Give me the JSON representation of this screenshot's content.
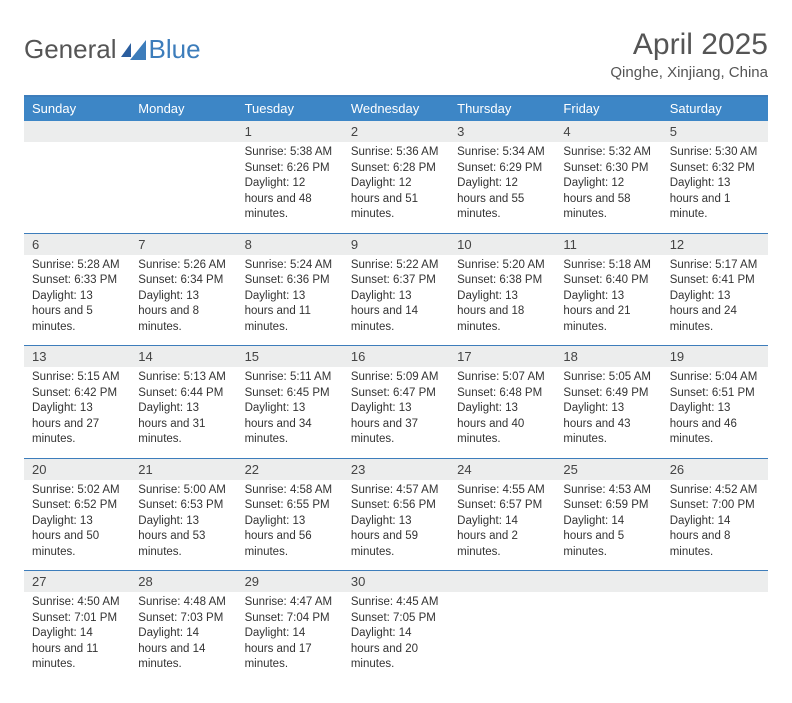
{
  "logo": {
    "text1": "General",
    "text2": "Blue"
  },
  "title": "April 2025",
  "location": "Qinghe, Xinjiang, China",
  "colors": {
    "header_bg": "#3d86c6",
    "header_text": "#ffffff",
    "daynum_bg": "#eceded",
    "rule": "#3d7dbb",
    "body_text": "#333333",
    "title_text": "#555555"
  },
  "weekdays": [
    "Sunday",
    "Monday",
    "Tuesday",
    "Wednesday",
    "Thursday",
    "Friday",
    "Saturday"
  ],
  "weeks": [
    [
      null,
      null,
      {
        "n": "1",
        "sr": "5:38 AM",
        "ss": "6:26 PM",
        "dl": "12 hours and 48 minutes."
      },
      {
        "n": "2",
        "sr": "5:36 AM",
        "ss": "6:28 PM",
        "dl": "12 hours and 51 minutes."
      },
      {
        "n": "3",
        "sr": "5:34 AM",
        "ss": "6:29 PM",
        "dl": "12 hours and 55 minutes."
      },
      {
        "n": "4",
        "sr": "5:32 AM",
        "ss": "6:30 PM",
        "dl": "12 hours and 58 minutes."
      },
      {
        "n": "5",
        "sr": "5:30 AM",
        "ss": "6:32 PM",
        "dl": "13 hours and 1 minute."
      }
    ],
    [
      {
        "n": "6",
        "sr": "5:28 AM",
        "ss": "6:33 PM",
        "dl": "13 hours and 5 minutes."
      },
      {
        "n": "7",
        "sr": "5:26 AM",
        "ss": "6:34 PM",
        "dl": "13 hours and 8 minutes."
      },
      {
        "n": "8",
        "sr": "5:24 AM",
        "ss": "6:36 PM",
        "dl": "13 hours and 11 minutes."
      },
      {
        "n": "9",
        "sr": "5:22 AM",
        "ss": "6:37 PM",
        "dl": "13 hours and 14 minutes."
      },
      {
        "n": "10",
        "sr": "5:20 AM",
        "ss": "6:38 PM",
        "dl": "13 hours and 18 minutes."
      },
      {
        "n": "11",
        "sr": "5:18 AM",
        "ss": "6:40 PM",
        "dl": "13 hours and 21 minutes."
      },
      {
        "n": "12",
        "sr": "5:17 AM",
        "ss": "6:41 PM",
        "dl": "13 hours and 24 minutes."
      }
    ],
    [
      {
        "n": "13",
        "sr": "5:15 AM",
        "ss": "6:42 PM",
        "dl": "13 hours and 27 minutes."
      },
      {
        "n": "14",
        "sr": "5:13 AM",
        "ss": "6:44 PM",
        "dl": "13 hours and 31 minutes."
      },
      {
        "n": "15",
        "sr": "5:11 AM",
        "ss": "6:45 PM",
        "dl": "13 hours and 34 minutes."
      },
      {
        "n": "16",
        "sr": "5:09 AM",
        "ss": "6:47 PM",
        "dl": "13 hours and 37 minutes."
      },
      {
        "n": "17",
        "sr": "5:07 AM",
        "ss": "6:48 PM",
        "dl": "13 hours and 40 minutes."
      },
      {
        "n": "18",
        "sr": "5:05 AM",
        "ss": "6:49 PM",
        "dl": "13 hours and 43 minutes."
      },
      {
        "n": "19",
        "sr": "5:04 AM",
        "ss": "6:51 PM",
        "dl": "13 hours and 46 minutes."
      }
    ],
    [
      {
        "n": "20",
        "sr": "5:02 AM",
        "ss": "6:52 PM",
        "dl": "13 hours and 50 minutes."
      },
      {
        "n": "21",
        "sr": "5:00 AM",
        "ss": "6:53 PM",
        "dl": "13 hours and 53 minutes."
      },
      {
        "n": "22",
        "sr": "4:58 AM",
        "ss": "6:55 PM",
        "dl": "13 hours and 56 minutes."
      },
      {
        "n": "23",
        "sr": "4:57 AM",
        "ss": "6:56 PM",
        "dl": "13 hours and 59 minutes."
      },
      {
        "n": "24",
        "sr": "4:55 AM",
        "ss": "6:57 PM",
        "dl": "14 hours and 2 minutes."
      },
      {
        "n": "25",
        "sr": "4:53 AM",
        "ss": "6:59 PM",
        "dl": "14 hours and 5 minutes."
      },
      {
        "n": "26",
        "sr": "4:52 AM",
        "ss": "7:00 PM",
        "dl": "14 hours and 8 minutes."
      }
    ],
    [
      {
        "n": "27",
        "sr": "4:50 AM",
        "ss": "7:01 PM",
        "dl": "14 hours and 11 minutes."
      },
      {
        "n": "28",
        "sr": "4:48 AM",
        "ss": "7:03 PM",
        "dl": "14 hours and 14 minutes."
      },
      {
        "n": "29",
        "sr": "4:47 AM",
        "ss": "7:04 PM",
        "dl": "14 hours and 17 minutes."
      },
      {
        "n": "30",
        "sr": "4:45 AM",
        "ss": "7:05 PM",
        "dl": "14 hours and 20 minutes."
      },
      null,
      null,
      null
    ]
  ],
  "labels": {
    "sunrise": "Sunrise: ",
    "sunset": "Sunset: ",
    "daylight": "Daylight: "
  }
}
